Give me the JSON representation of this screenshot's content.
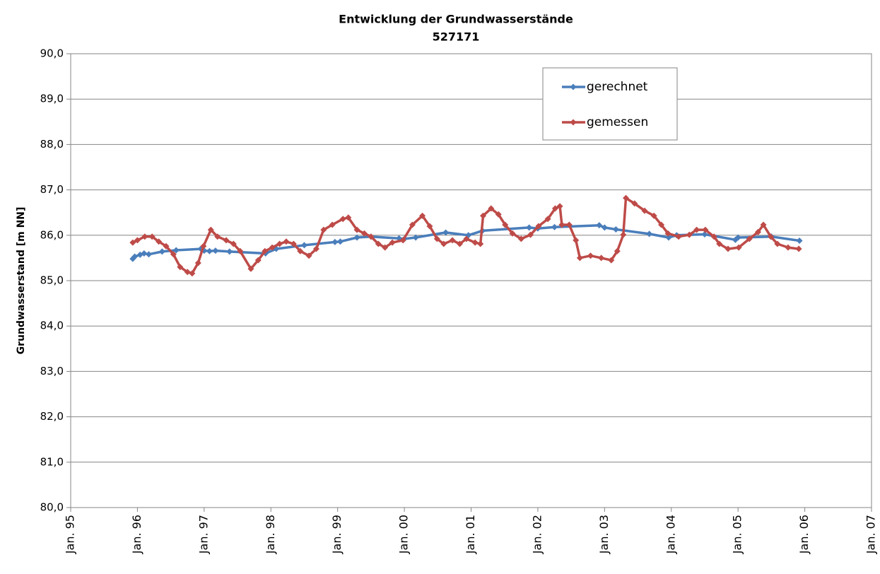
{
  "chart_data": {
    "type": "line",
    "title": "Entwicklung der Grundwasserstände",
    "subtitle": "527171",
    "y_label": "Grundwasserstand [m NN]",
    "xlim": [
      1995,
      2007
    ],
    "xticks": [
      {
        "value": 1995,
        "label": "Jan. 95"
      },
      {
        "value": 1996,
        "label": "Jan. 96"
      },
      {
        "value": 1997,
        "label": "Jan. 97"
      },
      {
        "value": 1998,
        "label": "Jan. 98"
      },
      {
        "value": 1999,
        "label": "Jan. 99"
      },
      {
        "value": 2000,
        "label": "Jan. 00"
      },
      {
        "value": 2001,
        "label": "Jan. 01"
      },
      {
        "value": 2002,
        "label": "Jan. 02"
      },
      {
        "value": 2003,
        "label": "Jan. 03"
      },
      {
        "value": 2004,
        "label": "Jan. 04"
      },
      {
        "value": 2005,
        "label": "Jan. 05"
      },
      {
        "value": 2006,
        "label": "Jan. 06"
      },
      {
        "value": 2007,
        "label": "Jan. 07"
      }
    ],
    "ylim": [
      80,
      90
    ],
    "yticks": [
      {
        "value": 80,
        "label": "80,0"
      },
      {
        "value": 81,
        "label": "81,0"
      },
      {
        "value": 82,
        "label": "82,0"
      },
      {
        "value": 83,
        "label": "83,0"
      },
      {
        "value": 84,
        "label": "84,0"
      },
      {
        "value": 85,
        "label": "85,0"
      },
      {
        "value": 86,
        "label": "86,0"
      },
      {
        "value": 87,
        "label": "87,0"
      },
      {
        "value": 88,
        "label": "88,0"
      },
      {
        "value": 89,
        "label": "89,0"
      },
      {
        "value": 90,
        "label": "90,0"
      }
    ],
    "grid": true,
    "legend": "top-right",
    "series": [
      {
        "name": "gerechnet",
        "color": "#4a7ebb",
        "x": [
          1995.93,
          1995.96,
          1996.04,
          1996.1,
          1996.17,
          1996.37,
          1996.58,
          1996.95,
          1997.0,
          1997.08,
          1997.17,
          1997.38,
          1997.92,
          1998.08,
          1998.5,
          1998.96,
          1999.04,
          1999.29,
          1999.5,
          1999.92,
          2000.0,
          2000.17,
          2000.62,
          2000.96,
          2001.17,
          2001.87,
          2002.0,
          2002.25,
          2002.92,
          2003.0,
          2003.17,
          2003.67,
          2003.96,
          2004.08,
          2004.5,
          2004.96,
          2005.0,
          2005.5,
          2005.92
        ],
        "values": [
          85.48,
          85.53,
          85.57,
          85.6,
          85.58,
          85.64,
          85.67,
          85.7,
          85.66,
          85.65,
          85.66,
          85.64,
          85.6,
          85.7,
          85.78,
          85.85,
          85.86,
          85.95,
          85.97,
          85.93,
          85.92,
          85.95,
          86.06,
          86.0,
          86.1,
          86.17,
          86.15,
          86.18,
          86.22,
          86.17,
          86.13,
          86.03,
          85.95,
          86.0,
          86.02,
          85.9,
          85.95,
          85.97,
          85.88
        ]
      },
      {
        "name": "gemessen",
        "color": "#be4b48",
        "x": [
          1995.93,
          1996.0,
          1996.11,
          1996.22,
          1996.32,
          1996.43,
          1996.54,
          1996.64,
          1996.75,
          1996.82,
          1996.91,
          1996.99,
          1997.1,
          1997.2,
          1997.33,
          1997.44,
          1997.54,
          1997.7,
          1997.81,
          1997.91,
          1998.02,
          1998.13,
          1998.23,
          1998.34,
          1998.44,
          1998.57,
          1998.68,
          1998.79,
          1998.92,
          1999.08,
          1999.16,
          1999.29,
          1999.4,
          1999.5,
          1999.61,
          1999.71,
          1999.82,
          1999.98,
          2000.12,
          2000.27,
          2000.38,
          2000.49,
          2000.59,
          2000.72,
          2000.83,
          2000.93,
          2001.06,
          2001.14,
          2001.18,
          2001.3,
          2001.41,
          2001.51,
          2001.62,
          2001.75,
          2001.89,
          2002.01,
          2002.15,
          2002.26,
          2002.33,
          2002.36,
          2002.47,
          2002.57,
          2002.63,
          2002.79,
          2002.95,
          2003.1,
          2003.19,
          2003.28,
          2003.32,
          2003.45,
          2003.6,
          2003.74,
          2003.85,
          2003.95,
          2004.11,
          2004.27,
          2004.38,
          2004.51,
          2004.64,
          2004.72,
          2004.85,
          2005.01,
          2005.17,
          2005.3,
          2005.38,
          2005.49,
          2005.59,
          2005.75,
          2005.91
        ],
        "values": [
          85.84,
          85.89,
          85.97,
          85.97,
          85.86,
          85.76,
          85.58,
          85.3,
          85.19,
          85.16,
          85.39,
          85.76,
          86.12,
          85.97,
          85.89,
          85.81,
          85.65,
          85.26,
          85.45,
          85.65,
          85.73,
          85.81,
          85.86,
          85.81,
          85.65,
          85.55,
          85.7,
          86.12,
          86.23,
          86.36,
          86.39,
          86.12,
          86.04,
          85.97,
          85.81,
          85.73,
          85.84,
          85.89,
          86.23,
          86.43,
          86.2,
          85.92,
          85.81,
          85.89,
          85.81,
          85.92,
          85.84,
          85.81,
          86.43,
          86.59,
          86.46,
          86.23,
          86.04,
          85.92,
          86.01,
          86.2,
          86.36,
          86.59,
          86.64,
          86.23,
          86.23,
          85.89,
          85.5,
          85.55,
          85.5,
          85.45,
          85.65,
          86.01,
          86.82,
          86.7,
          86.54,
          86.43,
          86.23,
          86.04,
          85.97,
          86.01,
          86.12,
          86.12,
          85.97,
          85.81,
          85.7,
          85.73,
          85.92,
          86.07,
          86.23,
          85.97,
          85.81,
          85.73,
          85.7
        ]
      }
    ]
  }
}
